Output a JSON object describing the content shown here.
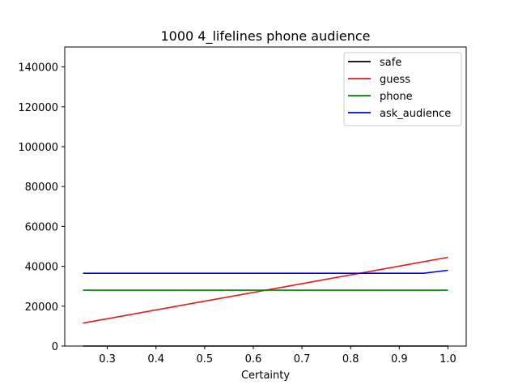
{
  "chart_data": {
    "type": "line",
    "title": "1000 4_lifelines phone audience",
    "xlabel": "Certainty",
    "ylabel": "",
    "xlim": [
      0.2125,
      1.0375
    ],
    "ylim": [
      0,
      150000
    ],
    "xticks": [
      0.3,
      0.4,
      0.5,
      0.6,
      0.7,
      0.8,
      0.9,
      1.0
    ],
    "xtick_labels": [
      "0.3",
      "0.4",
      "0.5",
      "0.6",
      "0.7",
      "0.8",
      "0.9",
      "1.0"
    ],
    "yticks": [
      0,
      20000,
      40000,
      60000,
      80000,
      100000,
      120000,
      140000
    ],
    "ytick_labels": [
      "0",
      "20000",
      "40000",
      "60000",
      "80000",
      "100000",
      "120000",
      "140000"
    ],
    "grid": false,
    "legend_position": "top-right",
    "series": [
      {
        "name": "safe",
        "color": "#000000",
        "x": [
          0.25,
          1.0
        ],
        "y": [
          0,
          0
        ]
      },
      {
        "name": "guess",
        "color": "#e41a1c",
        "x": [
          0.25,
          1.0
        ],
        "y": [
          11500,
          44500
        ]
      },
      {
        "name": "phone",
        "color": "#008000",
        "x": [
          0.25,
          1.0
        ],
        "y": [
          28000,
          28000
        ]
      },
      {
        "name": "ask_audience",
        "color": "#0000ee",
        "x": [
          0.25,
          0.95,
          1.0
        ],
        "y": [
          36500,
          36500,
          38000
        ]
      }
    ]
  }
}
